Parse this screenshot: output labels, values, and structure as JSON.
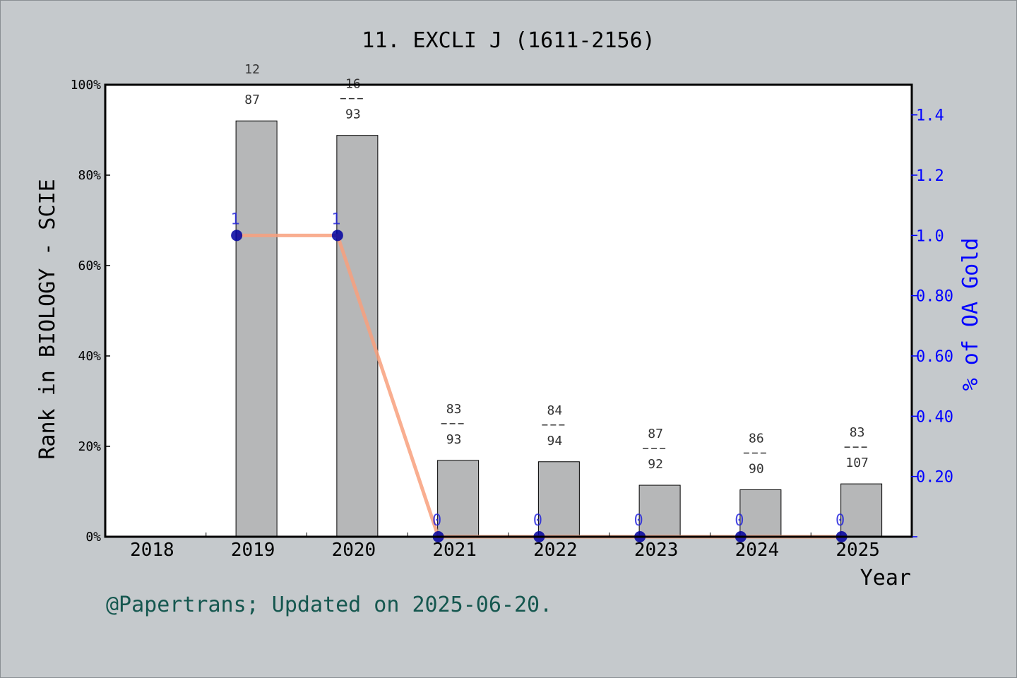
{
  "chart_data": {
    "type": "bar",
    "title": "11. EXCLI J (1611-2156)",
    "xlabel": "Year",
    "ylabel_left": "Rank in BIOLOGY - SCIE",
    "ylabel_right": "% of OA Gold",
    "categories": [
      "2018",
      "2019",
      "2020",
      "2021",
      "2022",
      "2023",
      "2024",
      "2025"
    ],
    "series": [
      {
        "type": "bar",
        "values": [
          null,
          92.0,
          88.8,
          16.9,
          16.6,
          11.4,
          10.4,
          11.7
        ],
        "labels": [
          null,
          {
            "rank": "12",
            "total": "87"
          },
          {
            "rank": "16",
            "total": "93"
          },
          {
            "rank": "83",
            "total": "93"
          },
          {
            "rank": "84",
            "total": "94"
          },
          {
            "rank": "87",
            "total": "92"
          },
          {
            "rank": "86",
            "total": "90"
          },
          {
            "rank": "83",
            "total": "107"
          }
        ]
      },
      {
        "type": "line",
        "axis": "right",
        "values": [
          null,
          1,
          1,
          0,
          0,
          0,
          0,
          0
        ],
        "point_labels": [
          null,
          "1",
          "1",
          "0",
          "0",
          "0",
          "0",
          "0"
        ]
      }
    ],
    "ylim_left": [
      0,
      100
    ],
    "yticks_left": [
      "0%",
      "20%",
      "40%",
      "60%",
      "80%",
      "100%"
    ],
    "ylim_right": [
      0,
      1.5
    ],
    "yticks_right": [
      {
        "value": 0.2,
        "label": "0.20"
      },
      {
        "value": 0.4,
        "label": "0.40"
      },
      {
        "value": 0.6,
        "label": "0.60"
      },
      {
        "value": 0.8,
        "label": "0.80"
      },
      {
        "value": 1.0,
        "label": "1.0"
      },
      {
        "value": 1.2,
        "label": "1.2"
      },
      {
        "value": 1.4,
        "label": "1.4"
      }
    ],
    "colors": {
      "bar": "#b6b7b8",
      "line": "#f8a07c",
      "marker": "#0000a0",
      "right_axis": "#0000ff"
    },
    "grid": false
  },
  "footer": "@Papertrans; Updated on 2025-06-20."
}
